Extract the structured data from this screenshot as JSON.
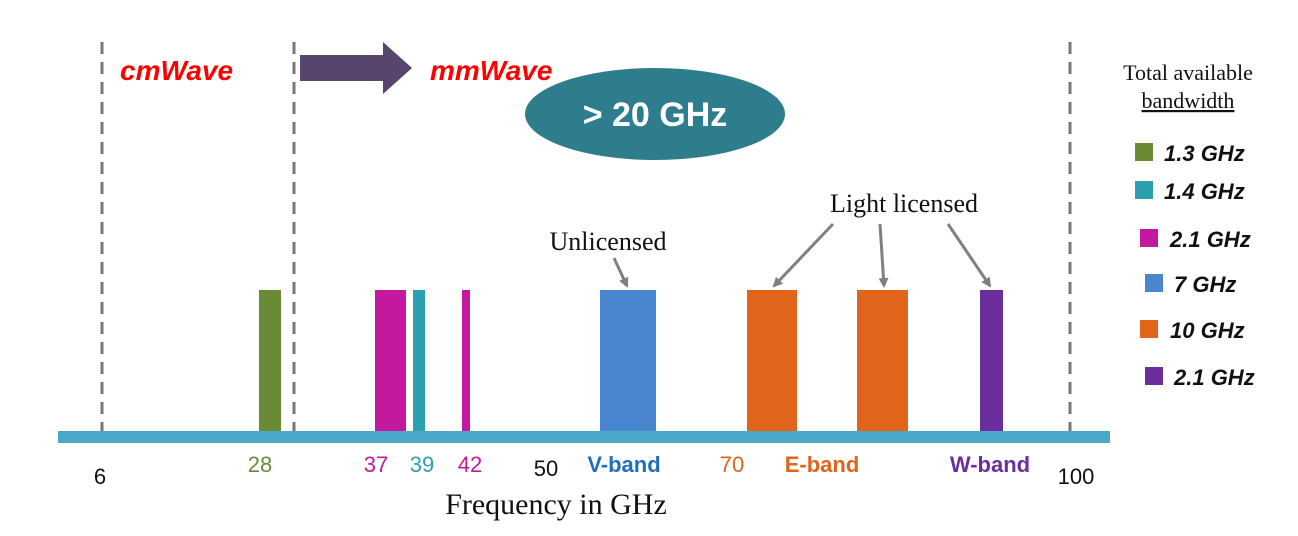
{
  "region_labels": {
    "cmwave": "cmWave",
    "mmwave": "mmWave"
  },
  "badge": {
    "text": "> 20 GHz",
    "color": "#2e7d8c"
  },
  "axis": {
    "label": "Frequency in GHz",
    "color": "#4aa8c8",
    "tick_labels": [
      {
        "id": "t6",
        "text": "6",
        "color": "#111111"
      },
      {
        "id": "t28",
        "text": "28",
        "color": "#6b8a35"
      },
      {
        "id": "t37",
        "text": "37",
        "color": "#c4199e"
      },
      {
        "id": "t39",
        "text": "39",
        "color": "#2aa0b0"
      },
      {
        "id": "t42",
        "text": "42",
        "color": "#c4199e"
      },
      {
        "id": "t50",
        "text": "50",
        "color": "#111111"
      },
      {
        "id": "tv",
        "text": "V-band",
        "color": "#1f6fc0"
      },
      {
        "id": "t70",
        "text": "70",
        "color": "#e0651a"
      },
      {
        "id": "te",
        "text": "E-band",
        "color": "#e0651a"
      },
      {
        "id": "tw",
        "text": "W-band",
        "color": "#6a2f9c"
      },
      {
        "id": "t100",
        "text": "100",
        "color": "#111111"
      }
    ]
  },
  "bands": [
    {
      "id": "b28",
      "color": "#6b8a35"
    },
    {
      "id": "b37",
      "color": "#c4199e"
    },
    {
      "id": "b39",
      "color": "#2aa0b0"
    },
    {
      "id": "b42",
      "color": "#c4199e"
    },
    {
      "id": "bv",
      "color": "#4a86d0"
    },
    {
      "id": "be1",
      "color": "#e0651a"
    },
    {
      "id": "be2",
      "color": "#e0651a"
    },
    {
      "id": "bw",
      "color": "#6a2f9c"
    }
  ],
  "annotations": {
    "unlicensed": "Unlicensed",
    "light_licensed": "Light licensed"
  },
  "legend": {
    "title_line1": "Total available",
    "title_line2": "bandwidth",
    "items": [
      {
        "label": "1.3 GHz",
        "color": "#6b8a35"
      },
      {
        "label": "1.4 GHz",
        "color": "#2aa0b0"
      },
      {
        "label": "2.1 GHz",
        "color": "#c4199e"
      },
      {
        "label": "7 GHz",
        "color": "#4a86d0"
      },
      {
        "label": "10 GHz",
        "color": "#e0651a"
      },
      {
        "label": "2.1 GHz",
        "color": "#6a2f9c"
      }
    ]
  },
  "colors": {
    "region_label": "#ff0000",
    "arrow": "#57456e",
    "divider": "#777777",
    "annotation_arrow": "#808080"
  }
}
